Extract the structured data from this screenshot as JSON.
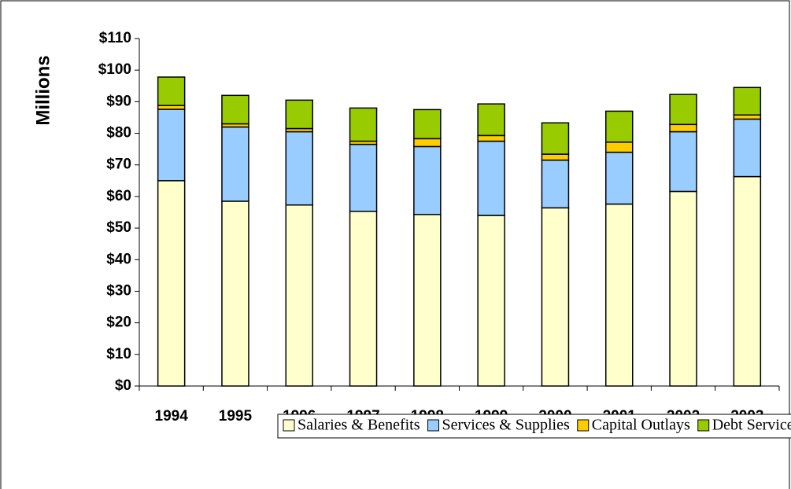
{
  "chart_data": {
    "type": "stacked_bar",
    "y_label": "Millions",
    "categories": [
      "1994",
      "1995",
      "1996",
      "1997",
      "1998",
      "1999",
      "2000",
      "2001",
      "2002",
      "2003"
    ],
    "series": [
      {
        "name": "Salaries & Benefits",
        "color": "#ffffcc",
        "values": [
          65,
          58.5,
          57.3,
          55.3,
          54.3,
          54,
          56.4,
          57.6,
          61.6,
          66.3
        ]
      },
      {
        "name": "Services & Supplies",
        "color": "#99ccff",
        "values": [
          22.6,
          23.5,
          23.2,
          21.2,
          21.5,
          23.5,
          15.1,
          16.4,
          18.9,
          18.2
        ]
      },
      {
        "name": "Capital Outlays",
        "color": "#ffcc00",
        "values": [
          1.2,
          1,
          1,
          1,
          2.5,
          1.8,
          1.9,
          3.2,
          2.3,
          1.3
        ]
      },
      {
        "name": "Debt Service",
        "color": "#99cc00",
        "values": [
          9,
          9,
          9,
          10.5,
          9.2,
          10,
          9.9,
          9.8,
          9.5,
          8.7
        ]
      }
    ],
    "ylim": [
      0,
      110
    ],
    "yticks": [
      {
        "value": 0,
        "label": "$0"
      },
      {
        "value": 10,
        "label": "$10"
      },
      {
        "value": 20,
        "label": "$20"
      },
      {
        "value": 30,
        "label": "$30"
      },
      {
        "value": 40,
        "label": "$40"
      },
      {
        "value": 50,
        "label": "$50"
      },
      {
        "value": 60,
        "label": "$60"
      },
      {
        "value": 70,
        "label": "$70"
      },
      {
        "value": 80,
        "label": "$80"
      },
      {
        "value": 90,
        "label": "$90"
      },
      {
        "value": 100,
        "label": "$100"
      },
      {
        "value": 110,
        "label": "$110"
      }
    ],
    "legend": "bottom"
  }
}
